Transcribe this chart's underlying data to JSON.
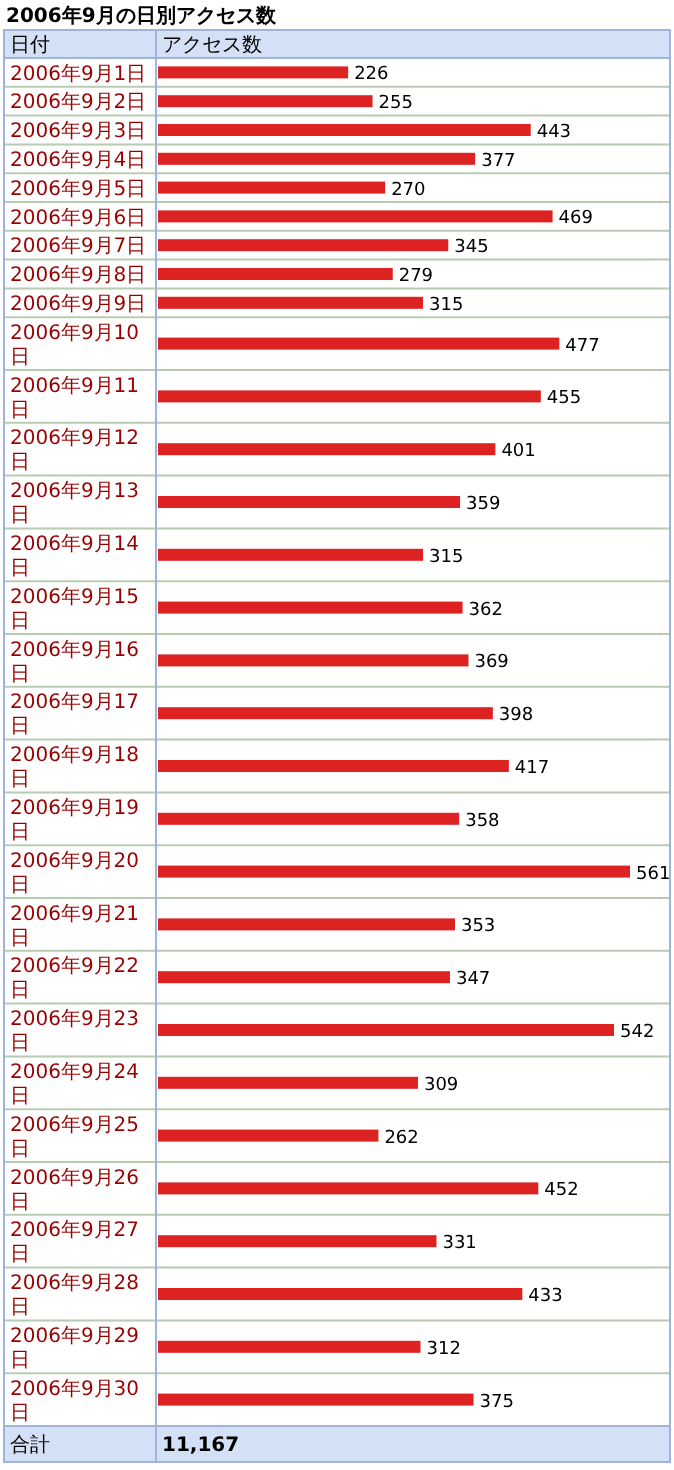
{
  "chart_data": {
    "type": "bar",
    "orientation": "horizontal",
    "title": "2006年9月の日別アクセス数",
    "ylabel": "日付",
    "xlabel": "アクセス数",
    "categories": [
      "2006年9月1日",
      "2006年9月2日",
      "2006年9月3日",
      "2006年9月4日",
      "2006年9月5日",
      "2006年9月6日",
      "2006年9月7日",
      "2006年9月8日",
      "2006年9月9日",
      "2006年9月10日",
      "2006年9月11日",
      "2006年9月12日",
      "2006年9月13日",
      "2006年9月14日",
      "2006年9月15日",
      "2006年9月16日",
      "2006年9月17日",
      "2006年9月18日",
      "2006年9月19日",
      "2006年9月20日",
      "2006年9月21日",
      "2006年9月22日",
      "2006年9月23日",
      "2006年9月24日",
      "2006年9月25日",
      "2006年9月26日",
      "2006年9月27日",
      "2006年9月28日",
      "2006年9月29日",
      "2006年9月30日"
    ],
    "values": [
      226,
      255,
      443,
      377,
      270,
      469,
      345,
      279,
      315,
      477,
      455,
      401,
      359,
      315,
      362,
      369,
      398,
      417,
      358,
      561,
      353,
      347,
      542,
      309,
      262,
      452,
      331,
      433,
      312,
      375
    ],
    "color": "#dd2222",
    "data_labels": true,
    "annotations": [
      "合計",
      "11,167"
    ]
  }
}
